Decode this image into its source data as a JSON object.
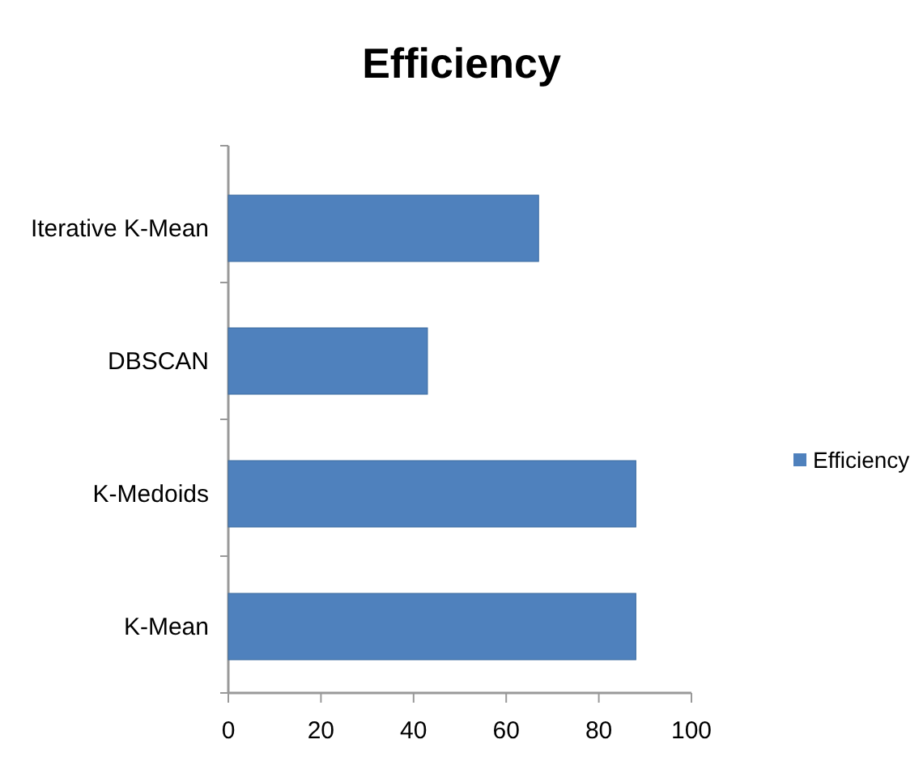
{
  "chart_data": {
    "type": "bar",
    "orientation": "horizontal",
    "title": "Efficiency",
    "categories": [
      "Iterative K-Mean",
      "DBSCAN",
      "K-Medoids",
      "K-Mean"
    ],
    "series": [
      {
        "name": "Efficiency",
        "color": "#4f81bd",
        "values": [
          67,
          43,
          88,
          88
        ]
      }
    ],
    "xlim": [
      0,
      100
    ],
    "xticks": [
      0,
      20,
      40,
      60,
      80,
      100
    ],
    "grid": false,
    "legend": "right"
  }
}
